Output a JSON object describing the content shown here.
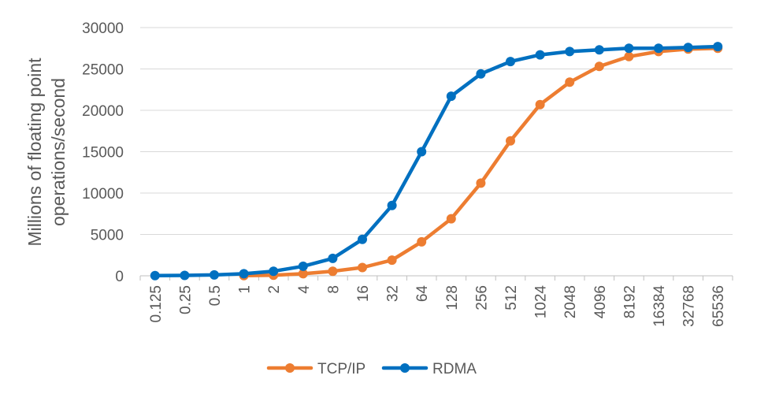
{
  "chart_data": {
    "type": "line",
    "categories": [
      "0.125",
      "0.25",
      "0.5",
      "1",
      "2",
      "4",
      "8",
      "16",
      "32",
      "64",
      "128",
      "256",
      "512",
      "1024",
      "2048",
      "4096",
      "8192",
      "16384",
      "32768",
      "65536"
    ],
    "series": [
      {
        "name": "TCP/IP",
        "color": "#ED7D31",
        "values": [
          null,
          null,
          null,
          20,
          80,
          250,
          550,
          1000,
          1900,
          4100,
          6900,
          11200,
          16300,
          20700,
          23400,
          25300,
          26500,
          27100,
          27400,
          27500
        ]
      },
      {
        "name": "RDMA",
        "color": "#0070C0",
        "values": [
          20,
          50,
          100,
          250,
          550,
          1150,
          2100,
          4400,
          8500,
          15000,
          21700,
          24400,
          25900,
          26700,
          27100,
          27300,
          27500,
          27500,
          27600,
          27700
        ]
      }
    ],
    "ylabel_lines": [
      "Millions of floating point",
      "operations/second"
    ],
    "y_ticks": [
      "0",
      "5000",
      "10000",
      "15000",
      "20000",
      "25000",
      "30000"
    ],
    "ylim": [
      0,
      30000
    ],
    "grid": true,
    "legend_position": "bottom"
  }
}
